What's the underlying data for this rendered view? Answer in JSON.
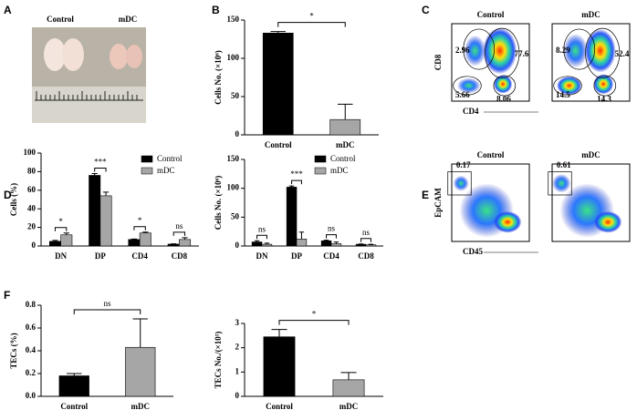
{
  "panel_letters": [
    "A",
    "B",
    "C",
    "D",
    "E",
    "F"
  ],
  "photo": {
    "labels": [
      "Control",
      "mDC"
    ]
  },
  "flow_c": {
    "y_label": "CD8",
    "x_label": "CD4",
    "plots": [
      {
        "title": "Control",
        "gates": [
          2.96,
          77.6,
          5.66,
          8.06
        ]
      },
      {
        "title": "mDC",
        "gates": [
          8.29,
          52.4,
          14.5,
          14.3
        ]
      }
    ]
  },
  "flow_e": {
    "y_label": "EpCAM",
    "x_label": "CD45",
    "plots": [
      {
        "title": "Control",
        "gates": [
          0.17
        ]
      },
      {
        "title": "mDC",
        "gates": [
          0.61
        ]
      }
    ]
  },
  "chart_data": [
    {
      "type": "bar",
      "y_label": "Cells No. (×10⁶)",
      "categories": [
        "Control",
        "mDC"
      ],
      "values": [
        133,
        20
      ],
      "errors": [
        2,
        20
      ],
      "colors": [
        "#000000",
        "#a6a6a6"
      ],
      "ylim": [
        0,
        150
      ],
      "yticks": [
        0,
        50,
        100,
        150
      ],
      "annotation": "*"
    },
    {
      "type": "grouped_bar",
      "y_label": "Cells (%)",
      "categories": [
        "DN",
        "DP",
        "CD4",
        "CD8"
      ],
      "series": [
        {
          "name": "Control",
          "color": "#000000",
          "values": [
            5,
            76,
            7,
            2
          ],
          "errors": [
            1,
            2,
            0.5,
            0.3
          ]
        },
        {
          "name": "mDC",
          "color": "#a6a6a6",
          "values": [
            12,
            54,
            14,
            7
          ],
          "errors": [
            2,
            4,
            1,
            2
          ]
        }
      ],
      "ylim": [
        0,
        100
      ],
      "yticks": [
        0,
        20,
        40,
        60,
        80,
        100
      ],
      "significance": [
        "*",
        "***",
        "*",
        "ns"
      ]
    },
    {
      "type": "grouped_bar",
      "y_label": "Cells No. (×10⁶)",
      "categories": [
        "DN",
        "DP",
        "CD4",
        "CD8"
      ],
      "series": [
        {
          "name": "Control",
          "color": "#000000",
          "values": [
            7,
            102,
            9,
            3
          ],
          "errors": [
            2,
            2,
            1,
            0.5
          ]
        },
        {
          "name": "mDC",
          "color": "#a6a6a6",
          "values": [
            3,
            12,
            4,
            2
          ],
          "errors": [
            2,
            12,
            3,
            1
          ]
        }
      ],
      "ylim": [
        0,
        150
      ],
      "yticks": [
        0,
        50,
        100,
        150
      ],
      "significance": [
        "ns",
        "***",
        "ns",
        "ns"
      ]
    },
    {
      "type": "bar",
      "y_label": "TECs (%)",
      "categories": [
        "Control",
        "mDC"
      ],
      "values": [
        0.18,
        0.43
      ],
      "errors": [
        0.02,
        0.25
      ],
      "colors": [
        "#000000",
        "#a6a6a6"
      ],
      "ylim": [
        0,
        0.8
      ],
      "yticks": [
        {
          "value": 0,
          "label": "0.0"
        },
        0.2,
        0.4,
        0.6,
        0.8
      ],
      "annotation": "ns"
    },
    {
      "type": "bar",
      "y_label": "TECs No./(×10⁵)",
      "categories": [
        "Control",
        "mDC"
      ],
      "values": [
        2.45,
        0.68
      ],
      "errors": [
        0.3,
        0.3
      ],
      "colors": [
        "#000000",
        "#a6a6a6"
      ],
      "ylim": [
        0,
        3
      ],
      "yticks": [
        0,
        1,
        2,
        3
      ],
      "annotation": "*"
    }
  ]
}
